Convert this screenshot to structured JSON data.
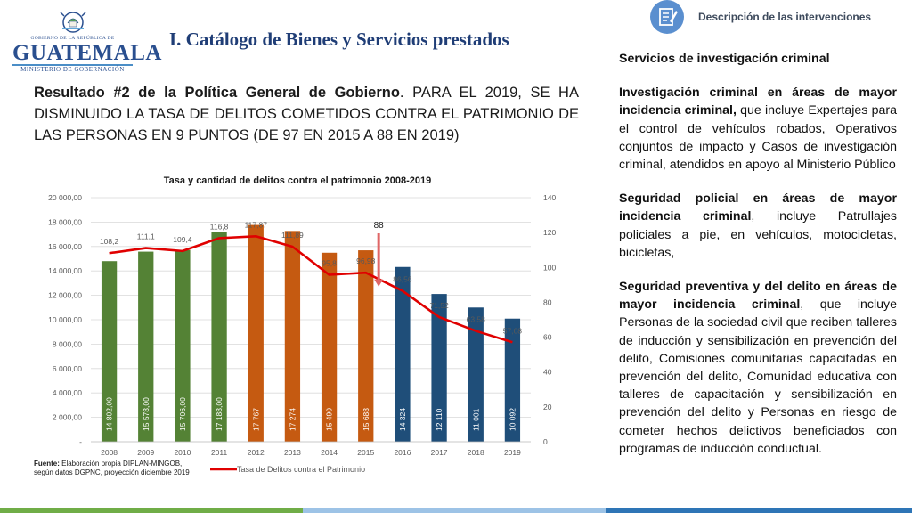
{
  "logo": {
    "top_text": "GOBIERNO DE LA REPÚBLICA DE",
    "brand": "GUATEMALA",
    "sub_text": "MINISTERIO DE GOBERNACIÓN"
  },
  "title": "I. Catálogo de Bienes y Servicios prestados",
  "result": {
    "bold": "Resultado #2 de la Política General de Gobierno",
    "rest": ". PARA EL 2019, SE HA DISMINUIDO LA TASA DE DELITOS COMETIDOS CONTRA EL PATRIMONIO DE LAS PERSONAS EN 9 PUNTOS (DE 97 EN 2015 A 88 EN 2019)"
  },
  "chart_data": {
    "type": "bar",
    "title": "Tasa y cantidad de delitos contra el patrimonio 2008-2019",
    "categories": [
      "2008",
      "2009",
      "2010",
      "2011",
      "2012",
      "2013",
      "2014",
      "2015",
      "2016",
      "2017",
      "2018",
      "2019"
    ],
    "series": [
      {
        "kind": "bar",
        "values": [
          14802,
          15578,
          15706,
          17188,
          17767,
          17274,
          15490,
          15688,
          14324,
          12110,
          11001,
          10092
        ],
        "labels": [
          "14 802,00",
          "15 578,00",
          "15 706,00",
          "17 188,00",
          "17 767",
          "17 274",
          "15 490",
          "15 688",
          "14 324",
          "12 110",
          "11 001",
          "10 092"
        ],
        "colors": [
          "#548235",
          "#548235",
          "#548235",
          "#548235",
          "#c55a11",
          "#c55a11",
          "#c55a11",
          "#c55a11",
          "#1f4e79",
          "#1f4e79",
          "#1f4e79",
          "#1f4e79"
        ]
      },
      {
        "kind": "line",
        "name": "Tasa de Delitos contra el Patrimonio",
        "values": [
          108.2,
          111.1,
          109.4,
          116.8,
          117.87,
          111.89,
          95.8,
          96.98,
          86.56,
          71.52,
          63.58,
          57.08
        ],
        "labels": [
          "108,2",
          "111,1",
          "109,4",
          "116,8",
          "117,87",
          "111,89",
          "95,8",
          "96,98",
          "86,56",
          "71,52",
          "63,58",
          "57,08"
        ],
        "color": "#e00000"
      }
    ],
    "ylim": [
      0,
      20000
    ],
    "ytick_labels": [
      "-",
      "2 000,00",
      "4 000,00",
      "6 000,00",
      "8 000,00",
      "10 000,00",
      "12 000,00",
      "14 000,00",
      "16 000,00",
      "18 000,00",
      "20 000,00"
    ],
    "y2lim": [
      0,
      140
    ],
    "y2tick_labels": [
      "0",
      "20",
      "40",
      "60",
      "80",
      "100",
      "120",
      "140"
    ],
    "annotation": {
      "text": "88",
      "value": 88
    },
    "grid": true,
    "legend": "bottom"
  },
  "source": {
    "label": "Fuente:",
    "line1": " Elaboración propia DIPLAN-MINGOB,",
    "line2": "según datos DGPNC, proyección  diciembre 2019"
  },
  "right": {
    "header_label": "Descripción de las intervenciones",
    "heading": "Servicios de investigación criminal",
    "paragraphs": [
      {
        "bold": "Investigación criminal en áreas de mayor incidencia criminal,",
        "rest": " que incluye Expertajes para el control de vehículos robados, Operativos conjuntos de impacto y Casos de investigación criminal, atendidos en apoyo al Ministerio Público"
      },
      {
        "bold": "Seguridad policial en áreas de mayor incidencia criminal",
        "rest": ", incluye Patrullajes policiales a pie, en vehículos, motocicletas, bicicletas,"
      },
      {
        "bold": "Seguridad preventiva y del delito en áreas de mayor incidencia criminal",
        "rest": ", que incluye Personas de la sociedad civil que reciben talleres de inducción y sensibilización en prevención del delito, Comisiones comunitarias capacitadas en prevención del delito, Comunidad educativa con talleres de capacitación y sensibilización en prevención del delito y Personas en riesgo de cometer hechos delictivos beneficiados con programas de inducción conductual."
      }
    ]
  }
}
